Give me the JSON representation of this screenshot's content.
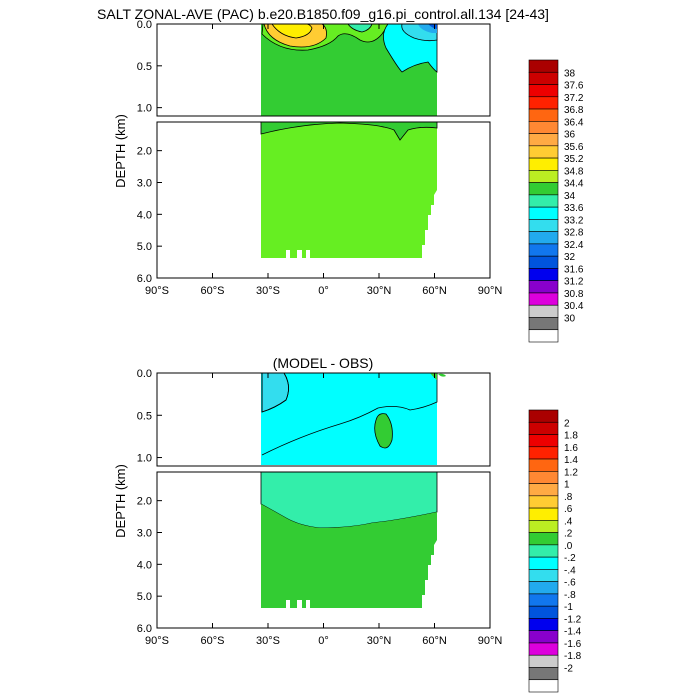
{
  "top_panel": {
    "title": "SALT ZONAL-AVE (PAC) b.e20.B1850.f09_g16.pi_control.all.134 [24-43]"
  },
  "bottom_panel": {
    "title": "(MODEL - OBS)"
  },
  "colors": {
    "green": "#33cc33",
    "light_green": "#66ee22",
    "yellow": "#ffee00",
    "orange_yellow": "#ffcc33",
    "cyan": "#00ffff",
    "light_cyan": "#33ddee",
    "aqua_green": "#33eeaa",
    "sky_blue": "#22aaee",
    "blue": "#0055dd"
  },
  "chart_data": [
    {
      "type": "heatmap",
      "title": "SALT ZONAL-AVE (PAC) b.e20.B1850.f09_g16.pi_control.all.134 [24-43]",
      "ylabel": "DEPTH (km)",
      "xlim": [
        -90,
        90
      ],
      "x_ticks": [
        "90°S",
        "60°S",
        "30°S",
        "0°",
        "30°N",
        "60°N",
        "90°N"
      ],
      "upper_section": {
        "ylim": [
          0,
          1.1
        ],
        "y_ticks": [
          "0.0",
          "0.5",
          "1.0"
        ]
      },
      "lower_section": {
        "ylim": [
          1.1,
          6.0
        ],
        "y_ticks": [
          "2.0",
          "3.0",
          "4.0",
          "5.0",
          "6.0"
        ]
      },
      "data_extent_lat": [
        -34,
        62
      ],
      "colorbar": {
        "labels": [
          "38",
          "37.6",
          "37.2",
          "36.8",
          "36.4",
          "36",
          "35.6",
          "35.2",
          "34.8",
          "34.4",
          "34",
          "33.6",
          "33.2",
          "32.8",
          "32.4",
          "32",
          "31.6",
          "31.2",
          "30.8",
          "30.4",
          "30"
        ],
        "colors": [
          "#aa0000",
          "#cc0000",
          "#ee0000",
          "#ff2200",
          "#ff6611",
          "#ff8833",
          "#ffaa44",
          "#ffcc33",
          "#ffee00",
          "#bbee22",
          "#33cc33",
          "#33eeaa",
          "#00ffff",
          "#33ddee",
          "#22aaee",
          "#1177ee",
          "#0055dd",
          "#0000ee",
          "#8800cc",
          "#dd00dd",
          "#cccccc",
          "#777777",
          "#ffffff"
        ]
      }
    },
    {
      "type": "heatmap",
      "title": "(MODEL - OBS)",
      "ylabel": "DEPTH (km)",
      "xlim": [
        -90,
        90
      ],
      "x_ticks": [
        "90°S",
        "60°S",
        "30°S",
        "0°",
        "30°N",
        "60°N",
        "90°N"
      ],
      "upper_section": {
        "ylim": [
          0,
          1.1
        ],
        "y_ticks": [
          "0.0",
          "0.5",
          "1.0"
        ]
      },
      "lower_section": {
        "ylim": [
          1.1,
          6.0
        ],
        "y_ticks": [
          "2.0",
          "3.0",
          "4.0",
          "5.0",
          "6.0"
        ]
      },
      "data_extent_lat": [
        -34,
        62
      ],
      "colorbar": {
        "labels": [
          "2",
          "1.8",
          "1.6",
          "1.4",
          "1.2",
          "1",
          ".8",
          ".6",
          ".4",
          ".2",
          ".0",
          "-.2",
          "-.4",
          "-.6",
          "-.8",
          "-1",
          "-1.2",
          "-1.4",
          "-1.6",
          "-1.8",
          "-2"
        ],
        "colors": [
          "#aa0000",
          "#cc0000",
          "#ee0000",
          "#ff2200",
          "#ff6611",
          "#ff8833",
          "#ffaa44",
          "#ffcc33",
          "#ffee00",
          "#bbee22",
          "#33cc33",
          "#33eeaa",
          "#00ffff",
          "#33ddee",
          "#22aaee",
          "#1177ee",
          "#0055dd",
          "#0000ee",
          "#8800cc",
          "#dd00dd",
          "#cccccc",
          "#777777",
          "#ffffff"
        ]
      }
    }
  ]
}
